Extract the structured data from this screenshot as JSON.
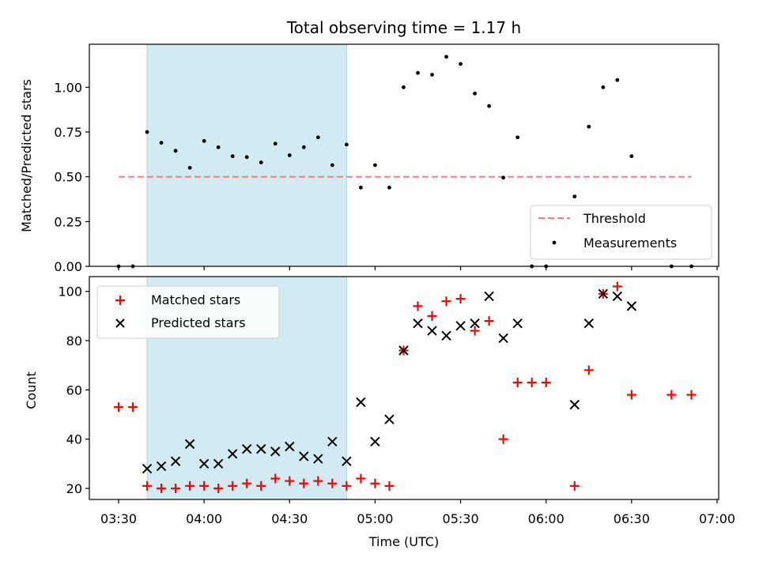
{
  "chart_data": {
    "type": "scatter",
    "title": "Total observing time = 1.17 h",
    "xlabel": "Time (UTC)",
    "x_ticks": [
      "03:30",
      "04:00",
      "04:30",
      "05:00",
      "05:30",
      "06:00",
      "06:30",
      "07:00"
    ],
    "xlim_minutes": [
      3.27,
      7.02
    ],
    "shaded_interval": [
      "03:40",
      "04:50"
    ],
    "shade_color": "#add8e6",
    "top": {
      "ylabel": "Matched/Predicted stars",
      "ylim": [
        0,
        1.24
      ],
      "y_ticks": [
        "0.00",
        "0.25",
        "0.50",
        "0.75",
        "1.00"
      ],
      "y_tick_values": [
        0,
        0.25,
        0.5,
        0.75,
        1.0
      ],
      "threshold": {
        "name": "Threshold",
        "value": 0.5,
        "x_start": "03:30",
        "x_end": "06:51",
        "color": "#f08080"
      },
      "measurements": {
        "name": "Measurements",
        "color": "#000000",
        "times": [
          "03:30",
          "03:35",
          "03:40",
          "03:45",
          "03:50",
          "03:55",
          "04:00",
          "04:05",
          "04:10",
          "04:15",
          "04:20",
          "04:25",
          "04:30",
          "04:35",
          "04:40",
          "04:45",
          "04:50",
          "04:55",
          "05:00",
          "05:05",
          "05:10",
          "05:15",
          "05:20",
          "05:25",
          "05:30",
          "05:35",
          "05:40",
          "05:45",
          "05:50",
          "05:55",
          "06:00",
          "06:10",
          "06:15",
          "06:20",
          "06:25",
          "06:30",
          "06:44",
          "06:51"
        ],
        "values": [
          0.0,
          0.0,
          0.75,
          0.69,
          0.645,
          0.55,
          0.7,
          0.665,
          0.615,
          0.61,
          0.58,
          0.685,
          0.62,
          0.665,
          0.72,
          0.565,
          0.68,
          0.44,
          0.565,
          0.44,
          1.0,
          1.08,
          1.07,
          1.17,
          1.13,
          0.965,
          0.895,
          0.495,
          0.72,
          0.0,
          0.0,
          0.39,
          0.78,
          1.0,
          1.04,
          0.615,
          0.0,
          0.0
        ]
      }
    },
    "bottom": {
      "ylabel": "Count",
      "ylim": [
        15.5,
        106
      ],
      "y_ticks": [
        "20",
        "40",
        "60",
        "80",
        "100"
      ],
      "y_tick_values": [
        20,
        40,
        60,
        80,
        100
      ],
      "matched": {
        "name": "Matched stars",
        "color": "#ff0000",
        "times": [
          "03:30",
          "03:35",
          "03:40",
          "03:45",
          "03:50",
          "03:55",
          "04:00",
          "04:05",
          "04:10",
          "04:15",
          "04:20",
          "04:25",
          "04:30",
          "04:35",
          "04:40",
          "04:45",
          "04:50",
          "04:55",
          "05:00",
          "05:05",
          "05:10",
          "05:15",
          "05:20",
          "05:25",
          "05:30",
          "05:35",
          "05:40",
          "05:45",
          "05:50",
          "05:55",
          "06:00",
          "06:10",
          "06:15",
          "06:20",
          "06:25",
          "06:30",
          "06:44",
          "06:51"
        ],
        "values": [
          53,
          53,
          21,
          20,
          20,
          21,
          21,
          20,
          21,
          22,
          21,
          24,
          23,
          22,
          23,
          22,
          21,
          24,
          22,
          21,
          76,
          94,
          90,
          96,
          97,
          84,
          88,
          40,
          63,
          63,
          63,
          21,
          68,
          99,
          102,
          58,
          58,
          58
        ]
      },
      "predicted": {
        "name": "Predicted stars",
        "color": "#000000",
        "times": [
          "03:40",
          "03:45",
          "03:50",
          "03:55",
          "04:00",
          "04:05",
          "04:10",
          "04:15",
          "04:20",
          "04:25",
          "04:30",
          "04:35",
          "04:40",
          "04:45",
          "04:50",
          "04:55",
          "05:00",
          "05:05",
          "05:10",
          "05:15",
          "05:20",
          "05:25",
          "05:30",
          "05:35",
          "05:40",
          "05:45",
          "05:50",
          "06:10",
          "06:15",
          "06:20",
          "06:25",
          "06:30"
        ],
        "values": [
          28,
          29,
          31,
          38,
          30,
          30,
          34,
          36,
          36,
          35,
          37,
          33,
          32,
          39,
          31,
          55,
          39,
          48,
          76,
          87,
          84,
          82,
          86,
          87,
          98,
          81,
          87,
          54,
          87,
          99,
          98,
          94
        ]
      }
    }
  }
}
